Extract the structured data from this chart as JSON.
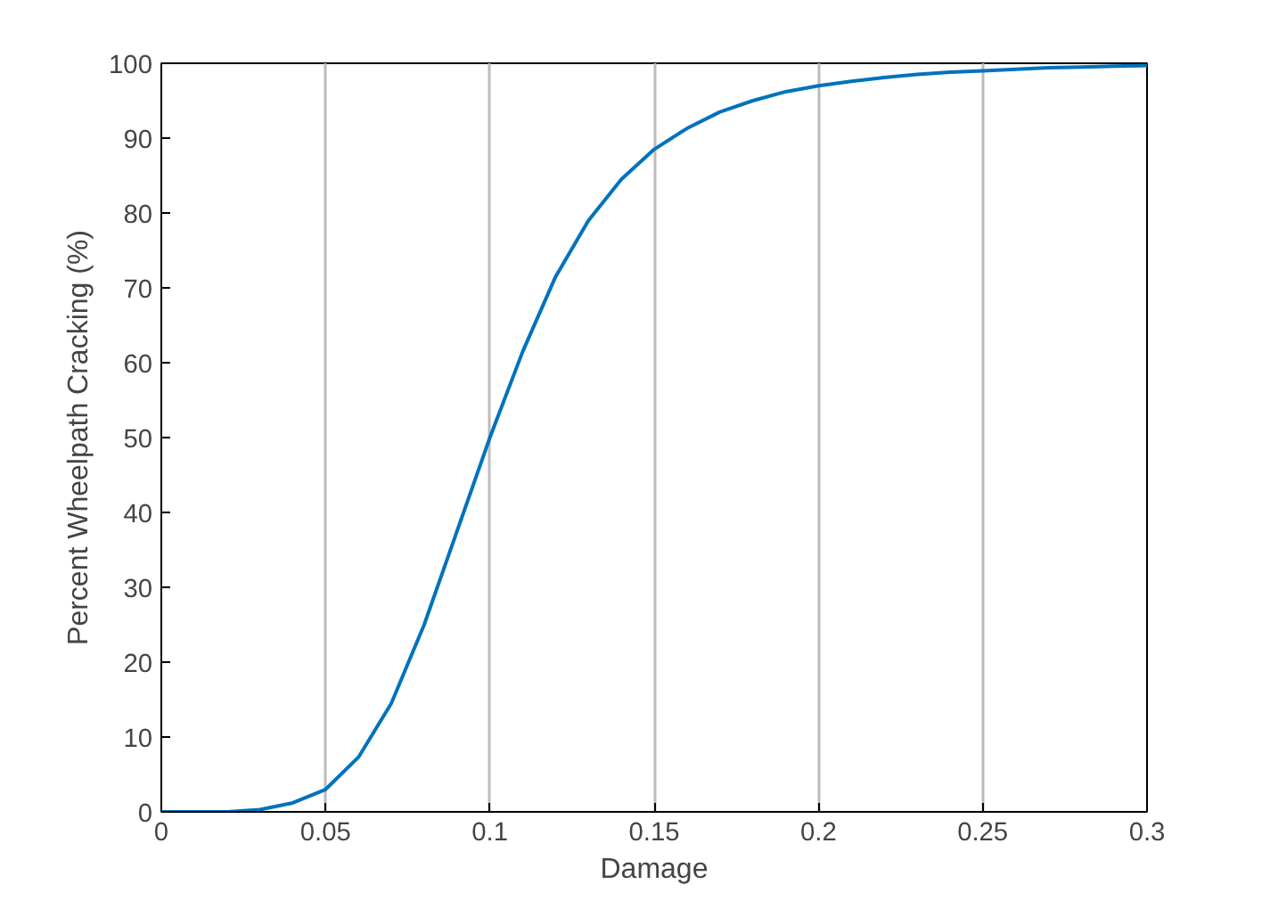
{
  "chart_data": {
    "type": "line",
    "xlabel": "Damage",
    "ylabel": "Percent Wheelpath Cracking (%)",
    "x": [
      0,
      0.01,
      0.02,
      0.03,
      0.04,
      0.05,
      0.06,
      0.07,
      0.08,
      0.09,
      0.1,
      0.11,
      0.12,
      0.13,
      0.14,
      0.15,
      0.16,
      0.17,
      0.18,
      0.19,
      0.2,
      0.21,
      0.22,
      0.23,
      0.24,
      0.25,
      0.26,
      0.27,
      0.28,
      0.29,
      0.3
    ],
    "series": [
      {
        "color": "#0072bd",
        "values": [
          0,
          0,
          0,
          0.3,
          1.2,
          3,
          7.3,
          14.5,
          25,
          37.5,
          50,
          61.5,
          71.5,
          79,
          84.5,
          88.5,
          91.3,
          93.5,
          95,
          96.2,
          97,
          97.6,
          98.1,
          98.5,
          98.8,
          99,
          99.2,
          99.4,
          99.5,
          99.6,
          99.7
        ]
      }
    ],
    "xlim": [
      0,
      0.3
    ],
    "xticks": [
      0,
      0.05,
      0.1,
      0.15,
      0.2,
      0.25,
      0.3
    ],
    "ylim": [
      0,
      100
    ],
    "yticks": [
      0,
      10,
      20,
      30,
      40,
      50,
      60,
      70,
      80,
      90,
      100
    ],
    "grid": "x",
    "line_style": "solid"
  }
}
